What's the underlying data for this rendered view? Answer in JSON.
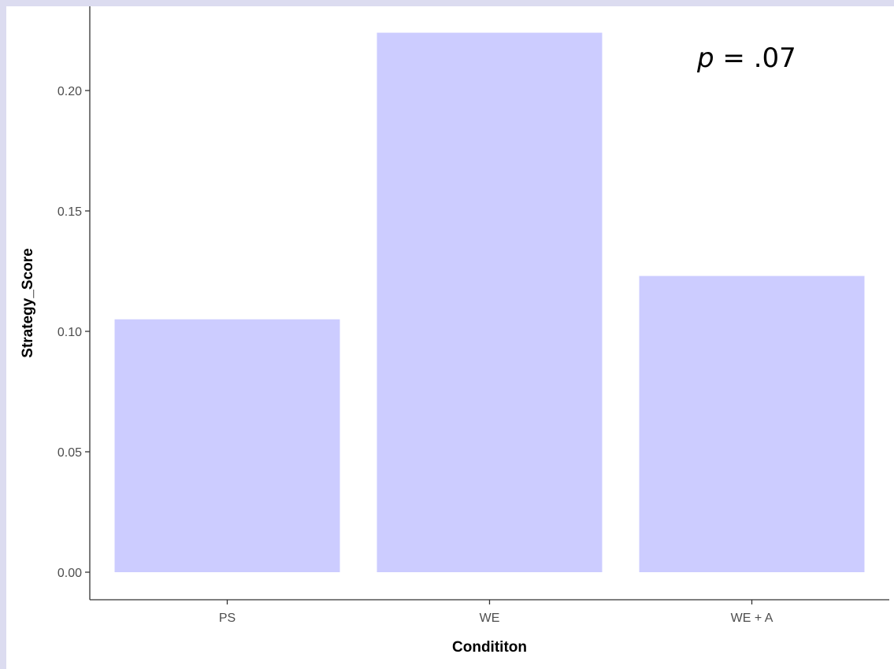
{
  "chart_data": {
    "type": "bar",
    "categories": [
      "PS",
      "WE",
      "WE + A"
    ],
    "values": [
      0.105,
      0.224,
      0.123
    ],
    "xlabel": "Condititon",
    "ylabel": "Strategy_Score",
    "ylim": [
      0,
      0.2245
    ],
    "yticks": [
      "0.00",
      "0.05",
      "0.10",
      "0.15",
      "0.20"
    ],
    "ytick_values": [
      0,
      0.05,
      0.1,
      0.15,
      0.2
    ],
    "grid": false,
    "bar_color": "#ccccff",
    "annotation": {
      "italic": "p",
      "rest": " = .07"
    }
  },
  "colors": {
    "background": "#dcdcf0",
    "panel": "#ffffff",
    "bar": "#ccccff",
    "axis": "#333333",
    "tick_text": "#4d4d4d"
  }
}
